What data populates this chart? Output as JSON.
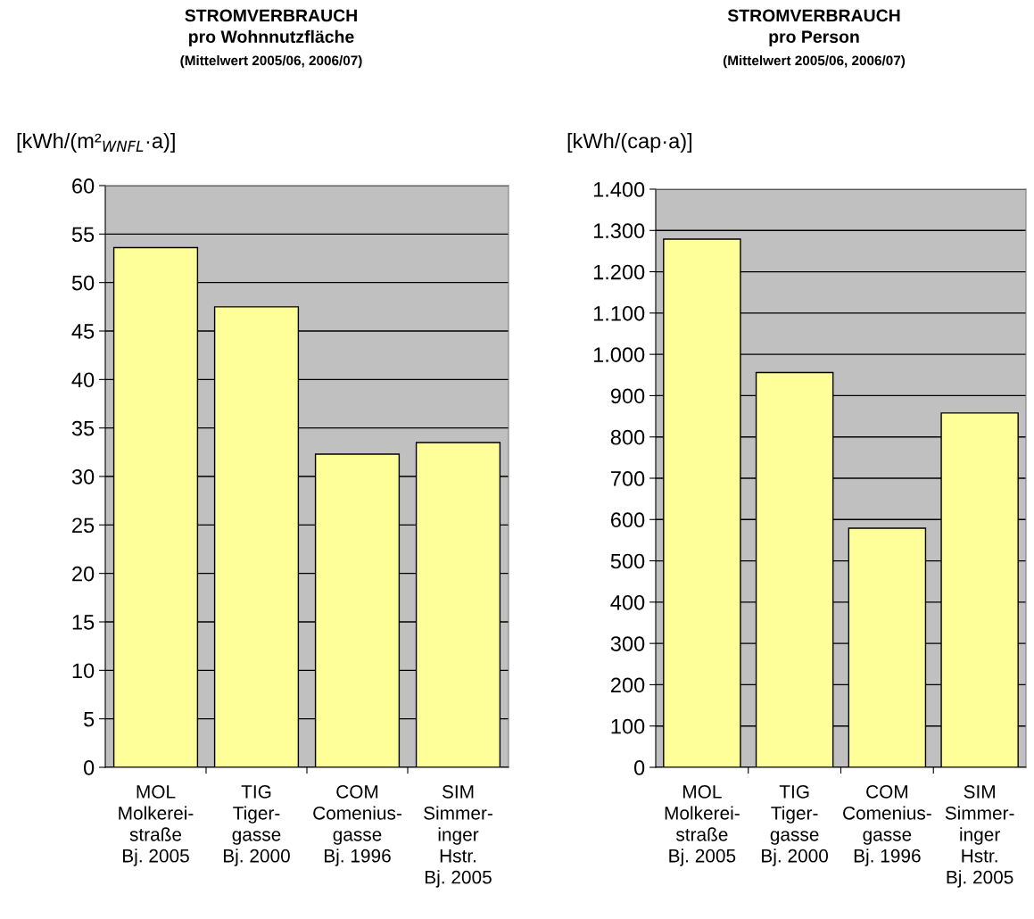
{
  "chart_data": [
    {
      "type": "bar",
      "title": "STROMVERBRAUCH\npro Wohnnutzfläche",
      "subtitle": "(Mittelwert 2005/06, 2006/07)",
      "ylabel": "[kWh/(m²$_{WNFL}$·a)]",
      "categories": [
        "MOL\nMolkerei-\nstraße\nBj. 2005",
        "TIG\nTiger-\ngasse\nBj. 2000",
        "COM\nComenius-\ngasse\nBj. 1996",
        "SIM\nSimmer-\ninger\nHstr.\nBj. 2005"
      ],
      "values": [
        53.6,
        47.5,
        32.3,
        33.5
      ],
      "color": "#ffff99",
      "ylim": [
        0,
        60
      ],
      "yticks": [
        0,
        5,
        10,
        15,
        20,
        25,
        30,
        35,
        40,
        45,
        50,
        55,
        60
      ],
      "grid": "y"
    },
    {
      "type": "bar",
      "title": "STROMVERBRAUCH\npro Person",
      "subtitle": "(Mittelwert 2005/06, 2006/07)",
      "ylabel": "[kWh/(cap·a)]",
      "categories": [
        "MOL\nMolkerei-\nstraße\nBj. 2005",
        "TIG\nTiger-\ngasse\nBj. 2000",
        "COM\nComenius-\ngasse\nBj. 1996",
        "SIM\nSimmer-\ninger\nHstr.\nBj. 2005"
      ],
      "values": [
        1279,
        956,
        579,
        858
      ],
      "color": "#ffff99",
      "ylim": [
        0,
        1400
      ],
      "yticks": [
        0,
        100,
        200,
        300,
        400,
        500,
        600,
        700,
        800,
        900,
        {
          "value": 1000,
          "label": "1.000"
        },
        {
          "value": 1100,
          "label": "1.100"
        },
        {
          "value": 1200,
          "label": "1.200"
        },
        {
          "value": 1300,
          "label": "1.300"
        },
        {
          "value": 1400,
          "label": "1.400"
        }
      ],
      "grid": "y"
    }
  ]
}
